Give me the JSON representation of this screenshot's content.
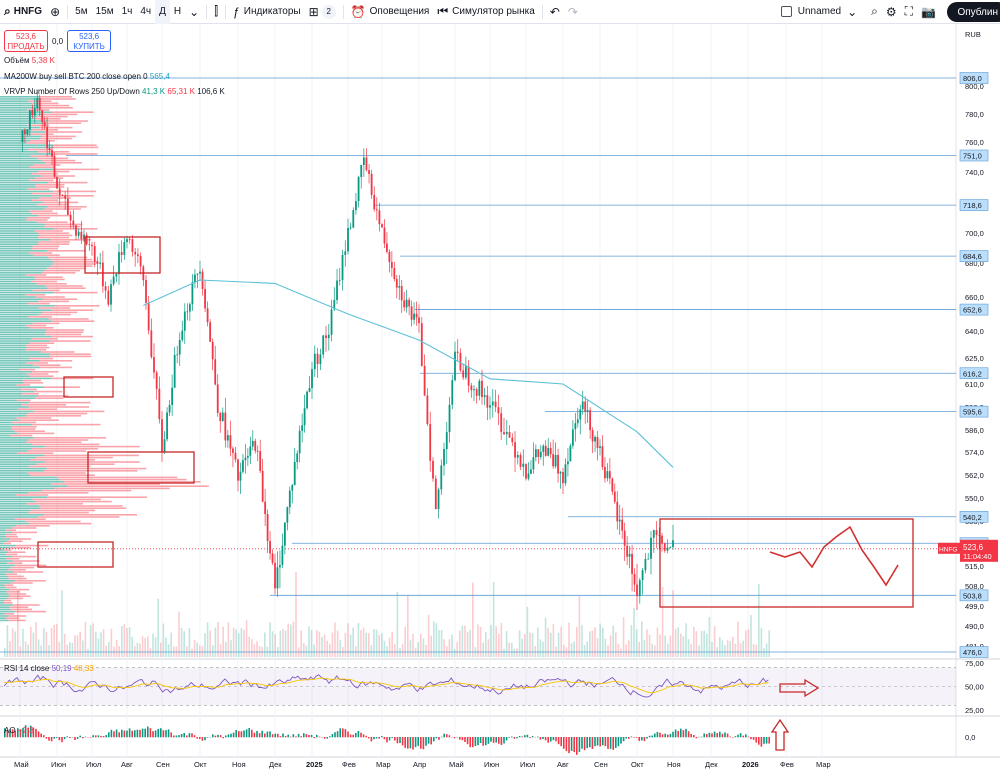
{
  "toolbar": {
    "symbol": "HNFG",
    "timeframes": [
      "5м",
      "15м",
      "1ч",
      "4ч",
      "Д",
      "Н"
    ],
    "active_timeframe": "Д",
    "indicators_label": "Индикаторы",
    "layouts_count": "2",
    "alerts_label": "Оповещения",
    "replay_label": "Симулятор рынка",
    "layout_name": "Unnamed",
    "publish_label": "Опублин"
  },
  "trade": {
    "sell_price": "523,6",
    "sell_label": "ПРОДАТЬ",
    "spread": "0,0",
    "buy_price": "523,6",
    "buy_label": "КУПИТЬ"
  },
  "legends": {
    "volume_label": "Объём",
    "volume_value": "5,38 K",
    "ma_label": "MA200W buy sell BTC 200 close open 0",
    "ma_value": "565,4",
    "vrvp_label": "VRVP Number Of Rows 250 Up/Down",
    "vrvp_up": "41,3 K",
    "vrvp_down": "65,31 K",
    "vrvp_total": "106,6 K",
    "rsi_label": "RSI 14 close",
    "rsi_value": "50,19",
    "rsi_ma": "48,33",
    "ao_label": "AO",
    "ao_value": "−2,3"
  },
  "price_scale": {
    "currency": "RUB",
    "current_price": "523,6",
    "current_symbol": "HNFG",
    "countdown": "11:04:40"
  },
  "colors": {
    "up": "#089981",
    "down": "#f23645",
    "ma": "#5bc0d6",
    "level": "#2962ff",
    "annotation": "#c62828",
    "rsi": "#7e57c2",
    "rsi_ma": "#f7c600"
  },
  "chart_data": {
    "type": "candlestick",
    "symbol": "HNFG",
    "timeframe": "Д",
    "currency": "RUB",
    "y_range": [
      476,
      806
    ],
    "x_tick_labels": [
      "Май",
      "Июн",
      "Июл",
      "Авг",
      "Сен",
      "Окт",
      "Ноя",
      "Дек",
      "2025",
      "Фев",
      "Мар",
      "Апр",
      "Май",
      "Июн",
      "Июл",
      "Авг",
      "Сен",
      "Окт",
      "Ноя",
      "Дек",
      "2026",
      "Фев",
      "Мар"
    ],
    "y_tick_labels": [
      "800,0",
      "780,0",
      "760,0",
      "740,0",
      "720,0",
      "700,0",
      "680,0",
      "660,0",
      "640,0",
      "625,0",
      "610,0",
      "598,0",
      "586,0",
      "574,0",
      "562,0",
      "550,0",
      "538,0",
      "526,0",
      "515,0",
      "508,0",
      "499,0",
      "490,0",
      "481,0"
    ],
    "horizontal_levels": [
      "806,0",
      "751,0",
      "718,6",
      "684,6",
      "652,6",
      "616,2",
      "595,6",
      "540,2",
      "526,4",
      "503,8",
      "476,0"
    ],
    "close_path": [
      {
        "date": "2024-05",
        "close": 760
      },
      {
        "date": "2024-05-15",
        "close": 792
      },
      {
        "date": "2024-06",
        "close": 730
      },
      {
        "date": "2024-06-15",
        "close": 705
      },
      {
        "date": "2024-07",
        "close": 690
      },
      {
        "date": "2024-07-15",
        "close": 660
      },
      {
        "date": "2024-08",
        "close": 700
      },
      {
        "date": "2024-08-15",
        "close": 670
      },
      {
        "date": "2024-09",
        "close": 575
      },
      {
        "date": "2024-09-15",
        "close": 640
      },
      {
        "date": "2024-10",
        "close": 680
      },
      {
        "date": "2024-10-15",
        "close": 600
      },
      {
        "date": "2024-11",
        "close": 560
      },
      {
        "date": "2024-11-15",
        "close": 580
      },
      {
        "date": "2024-12",
        "close": 504
      },
      {
        "date": "2024-12-15",
        "close": 560
      },
      {
        "date": "2025-01",
        "close": 620
      },
      {
        "date": "2025-01-15",
        "close": 640
      },
      {
        "date": "2025-02",
        "close": 700
      },
      {
        "date": "2025-02-15",
        "close": 748
      },
      {
        "date": "2025-03",
        "close": 700
      },
      {
        "date": "2025-03-15",
        "close": 665
      },
      {
        "date": "2025-04",
        "close": 640
      },
      {
        "date": "2025-04-15",
        "close": 542
      },
      {
        "date": "2025-05",
        "close": 625
      },
      {
        "date": "2025-05-15",
        "close": 612
      },
      {
        "date": "2025-06",
        "close": 600
      },
      {
        "date": "2025-06-15",
        "close": 585
      },
      {
        "date": "2025-07",
        "close": 565
      },
      {
        "date": "2025-07-15",
        "close": 575
      },
      {
        "date": "2025-08",
        "close": 563
      },
      {
        "date": "2025-08-15",
        "close": 602
      },
      {
        "date": "2025-09",
        "close": 575
      },
      {
        "date": "2025-09-15",
        "close": 540
      },
      {
        "date": "2025-10",
        "close": 505
      },
      {
        "date": "2025-10-15",
        "close": 528
      },
      {
        "date": "2025-11",
        "close": 523.6
      }
    ],
    "ma200_path": [
      {
        "date": "2024-08-15",
        "close": 655
      },
      {
        "date": "2024-10",
        "close": 670
      },
      {
        "date": "2024-12",
        "close": 668
      },
      {
        "date": "2025-02",
        "close": 650
      },
      {
        "date": "2025-04",
        "close": 635
      },
      {
        "date": "2025-06",
        "close": 613
      },
      {
        "date": "2025-08",
        "close": 610
      },
      {
        "date": "2025-10",
        "close": 585
      },
      {
        "date": "2025-11",
        "close": 566
      }
    ],
    "rsi": {
      "value": 50.19,
      "ma": 48.33,
      "levels": [
        70,
        50,
        30
      ],
      "y_ticks": [
        "75,00",
        "50,00",
        "25,00"
      ]
    },
    "ao": {
      "value": -2.3,
      "y_tick": "0,0"
    }
  }
}
